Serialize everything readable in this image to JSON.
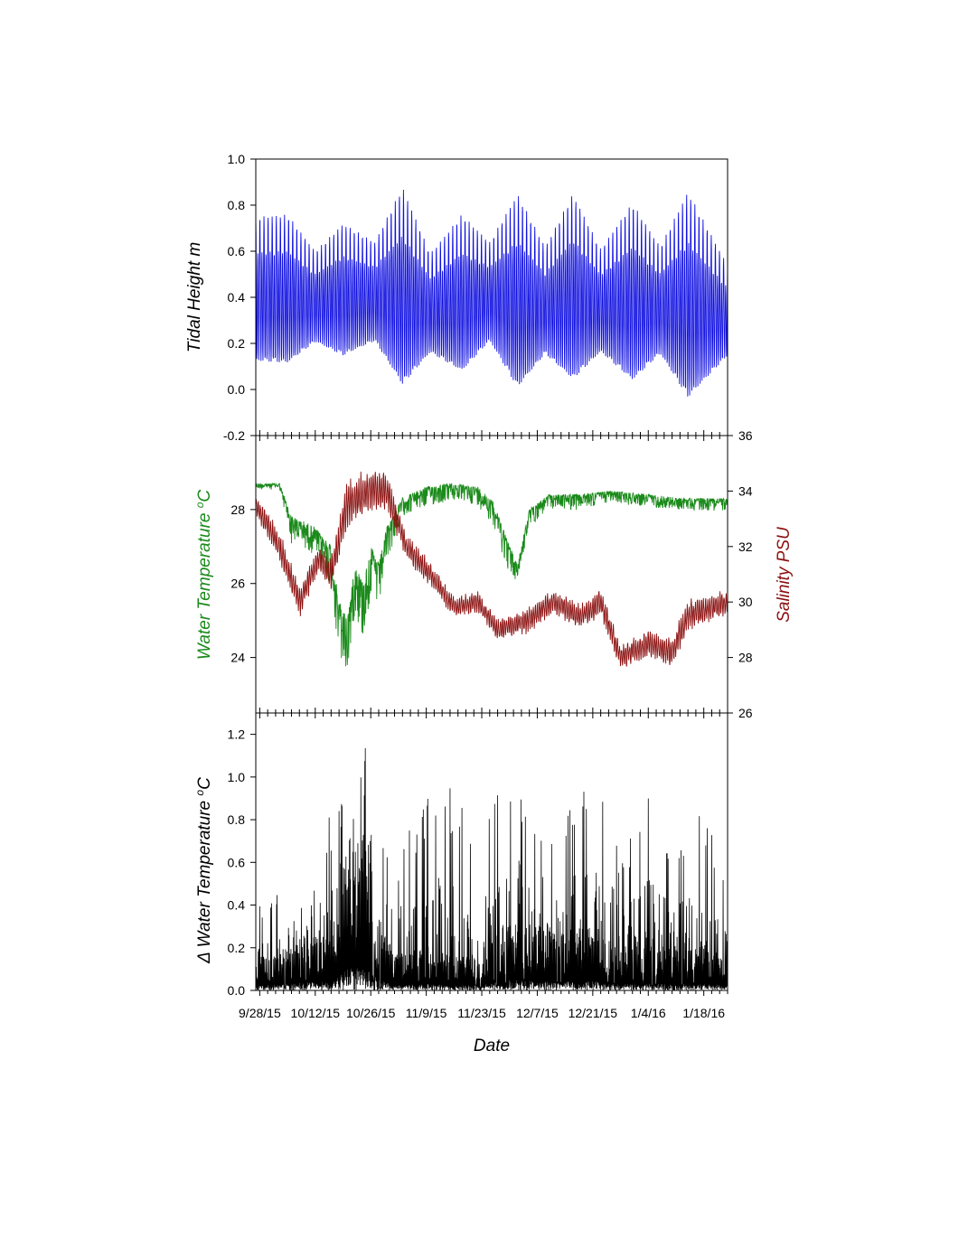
{
  "chart_data": [
    {
      "type": "line",
      "panel": "top",
      "ylabel": "Tidal Height m",
      "ylim": [
        -0.2,
        1.0
      ],
      "yticks": [
        "-0.2",
        "0.0",
        "0.2",
        "0.4",
        "0.6",
        "0.8",
        "1.0"
      ],
      "xlim": [
        "2015-09-27",
        "2016-01-24"
      ],
      "series": [
        {
          "color": "#1010e0",
          "description": "semidiurnal tide, spring-neap envelope",
          "envelope_days": [
            "2015-09-27",
            "2015-10-05",
            "2015-10-12",
            "2015-10-19",
            "2015-10-27",
            "2015-11-03",
            "2015-11-10",
            "2015-11-18",
            "2015-11-25",
            "2015-12-02",
            "2015-12-09",
            "2015-12-16",
            "2015-12-23",
            "2015-12-31",
            "2016-01-07",
            "2016-01-14",
            "2016-01-24"
          ],
          "mean": [
            0.4,
            0.4,
            0.38,
            0.4,
            0.4,
            0.4,
            0.35,
            0.38,
            0.4,
            0.38,
            0.36,
            0.4,
            0.36,
            0.38,
            0.36,
            0.36,
            0.32
          ],
          "amplitude": [
            0.35,
            0.36,
            0.22,
            0.32,
            0.24,
            0.48,
            0.24,
            0.38,
            0.24,
            0.47,
            0.26,
            0.45,
            0.25,
            0.43,
            0.26,
            0.5,
            0.22
          ]
        }
      ]
    },
    {
      "type": "line",
      "panel": "middle",
      "ylabel": "Water Temperature oC",
      "ylim": [
        22.5,
        30
      ],
      "yticks": [
        "24",
        "26",
        "28"
      ],
      "y2label": "Salinity PSU",
      "y2lim": [
        26,
        36
      ],
      "y2ticks": [
        "26",
        "28",
        "30",
        "32",
        "34",
        "36"
      ],
      "xlim": [
        "2015-09-27",
        "2016-01-24"
      ],
      "series": [
        {
          "axis": "left",
          "color": "#1a8a1a",
          "x": [
            "2015-09-27",
            "2015-10-03",
            "2015-10-06",
            "2015-10-12",
            "2015-10-16",
            "2015-10-18",
            "2015-10-20",
            "2015-10-22",
            "2015-10-24",
            "2015-10-26",
            "2015-10-28",
            "2015-10-30",
            "2015-11-03",
            "2015-11-09",
            "2015-11-15",
            "2015-11-22",
            "2015-11-26",
            "2015-11-30",
            "2015-12-02",
            "2015-12-05",
            "2015-12-10",
            "2015-12-18",
            "2015-12-25",
            "2016-01-04",
            "2016-01-12",
            "2016-01-23"
          ],
          "values": [
            28.7,
            28.7,
            27.8,
            27.5,
            27.0,
            25.5,
            25.0,
            26.5,
            26.0,
            27.0,
            26.5,
            27.5,
            28.3,
            28.6,
            28.7,
            28.6,
            28.2,
            27.0,
            26.5,
            28.0,
            28.4,
            28.4,
            28.5,
            28.4,
            28.3,
            28.3
          ],
          "noise": [
            0.1,
            0.1,
            0.45,
            0.45,
            0.7,
            1.0,
            1.1,
            0.8,
            1.0,
            0.9,
            0.8,
            0.6,
            0.3,
            0.35,
            0.3,
            0.3,
            0.4,
            0.5,
            0.3,
            0.3,
            0.25,
            0.25,
            0.2,
            0.2,
            0.2,
            0.2
          ]
        },
        {
          "axis": "right",
          "color": "#8b1010",
          "x": [
            "2015-09-27",
            "2015-10-03",
            "2015-10-08",
            "2015-10-13",
            "2015-10-16",
            "2015-10-20",
            "2015-10-25",
            "2015-10-30",
            "2015-11-04",
            "2015-11-10",
            "2015-11-16",
            "2015-11-22",
            "2015-11-27",
            "2015-12-04",
            "2015-12-11",
            "2015-12-18",
            "2015-12-23",
            "2015-12-28",
            "2016-01-04",
            "2016-01-10",
            "2016-01-14",
            "2016-01-24"
          ],
          "values": [
            33.5,
            32.0,
            30.0,
            31.6,
            31.0,
            33.5,
            34.0,
            34.0,
            32.0,
            31.0,
            29.8,
            30.0,
            29.0,
            29.3,
            30.0,
            29.5,
            30.0,
            28.0,
            28.5,
            28.2,
            29.5,
            30.0
          ],
          "noise": [
            0.4,
            0.6,
            0.6,
            0.5,
            0.6,
            0.9,
            0.9,
            0.7,
            0.5,
            0.5,
            0.4,
            0.4,
            0.4,
            0.5,
            0.5,
            0.5,
            0.5,
            0.5,
            0.5,
            0.6,
            0.6,
            0.5
          ]
        }
      ]
    },
    {
      "type": "line",
      "panel": "bottom",
      "ylabel": "Δ Water Temperature oC",
      "ylim": [
        0,
        1.3
      ],
      "yticks": [
        "0.0",
        "0.2",
        "0.4",
        "0.6",
        "0.8",
        "1.0",
        "1.2"
      ],
      "xlim": [
        "2015-09-27",
        "2016-01-24"
      ],
      "xlabel": "Date",
      "xticks": [
        "9/28/15",
        "10/12/15",
        "10/26/15",
        "11/9/15",
        "11/23/15",
        "12/7/15",
        "12/21/15",
        "1/4/16",
        "1/18/16"
      ],
      "series": [
        {
          "color": "#000000",
          "description": "daily range envelope",
          "x": [
            "2015-09-27",
            "2015-10-05",
            "2015-10-12",
            "2015-10-17",
            "2015-10-20",
            "2015-10-25",
            "2015-10-28",
            "2015-11-01",
            "2015-11-09",
            "2015-11-16",
            "2015-11-22",
            "2015-11-30",
            "2015-12-07",
            "2015-12-14",
            "2015-12-21",
            "2015-12-28",
            "2016-01-04",
            "2016-01-11",
            "2016-01-18",
            "2016-01-24"
          ],
          "peak": [
            0.4,
            0.55,
            0.8,
            0.85,
            1.18,
            1.2,
            0.85,
            0.6,
            0.95,
            0.95,
            0.75,
            1.05,
            0.9,
            0.8,
            1.1,
            0.7,
            0.9,
            0.65,
            0.85,
            0.5
          ],
          "base": [
            0.12,
            0.15,
            0.2,
            0.25,
            0.55,
            0.5,
            0.25,
            0.12,
            0.15,
            0.12,
            0.12,
            0.25,
            0.22,
            0.2,
            0.22,
            0.15,
            0.15,
            0.15,
            0.15,
            0.12
          ]
        }
      ]
    }
  ]
}
